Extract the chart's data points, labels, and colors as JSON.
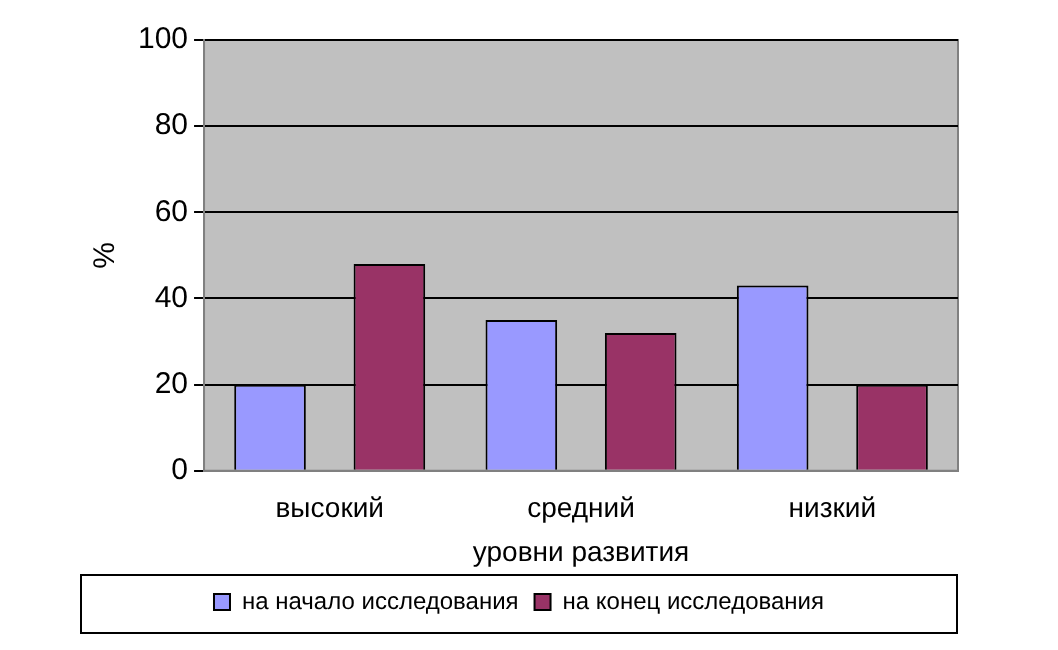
{
  "chart_data": {
    "type": "bar",
    "xlabel": "уровни развития",
    "ylabel": "%",
    "categories": [
      "высокий",
      "средний",
      "низкий"
    ],
    "series": [
      {
        "name": "на начало исследования",
        "color": "#9999ff",
        "values": [
          20,
          35,
          43
        ]
      },
      {
        "name": "на конец исследования",
        "color": "#993366",
        "values": [
          48,
          32,
          20
        ]
      }
    ],
    "ylim": [
      0,
      100
    ],
    "yticks": [
      0,
      20,
      40,
      60,
      80,
      100
    ],
    "grid": "y",
    "legend": "bottom"
  }
}
